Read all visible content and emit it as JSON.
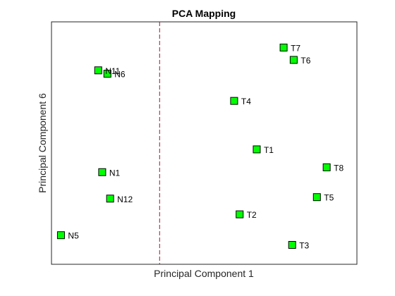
{
  "chart_data": {
    "type": "scatter",
    "title": "PCA Mapping",
    "xlabel": "Principal Component 1",
    "ylabel": "Principal Component 6",
    "xlim": [
      0,
      100
    ],
    "ylim": [
      0,
      100
    ],
    "x_ticks_visible": false,
    "y_ticks_visible": false,
    "grid": false,
    "separator_line": {
      "x": 35.4,
      "color": "#A2142F",
      "style": "dashed"
    },
    "marker": {
      "shape": "square",
      "face_color": "#00FF00",
      "edge_color": "#000000"
    },
    "points": [
      {
        "label": "T7",
        "x": 76.0,
        "y": 89.4
      },
      {
        "label": "T6",
        "x": 79.3,
        "y": 84.3
      },
      {
        "label": "N11",
        "x": 15.3,
        "y": 80.0
      },
      {
        "label": "N6",
        "x": 18.3,
        "y": 78.6
      },
      {
        "label": "T4",
        "x": 59.8,
        "y": 67.4
      },
      {
        "label": "T1",
        "x": 67.2,
        "y": 47.4
      },
      {
        "label": "N1",
        "x": 16.6,
        "y": 38.0
      },
      {
        "label": "T8",
        "x": 90.1,
        "y": 40.0
      },
      {
        "label": "N12",
        "x": 19.2,
        "y": 27.1
      },
      {
        "label": "T5",
        "x": 86.9,
        "y": 27.7
      },
      {
        "label": "T2",
        "x": 61.6,
        "y": 20.6
      },
      {
        "label": "N5",
        "x": 3.1,
        "y": 12.0
      },
      {
        "label": "T3",
        "x": 78.8,
        "y": 8.0
      }
    ]
  }
}
